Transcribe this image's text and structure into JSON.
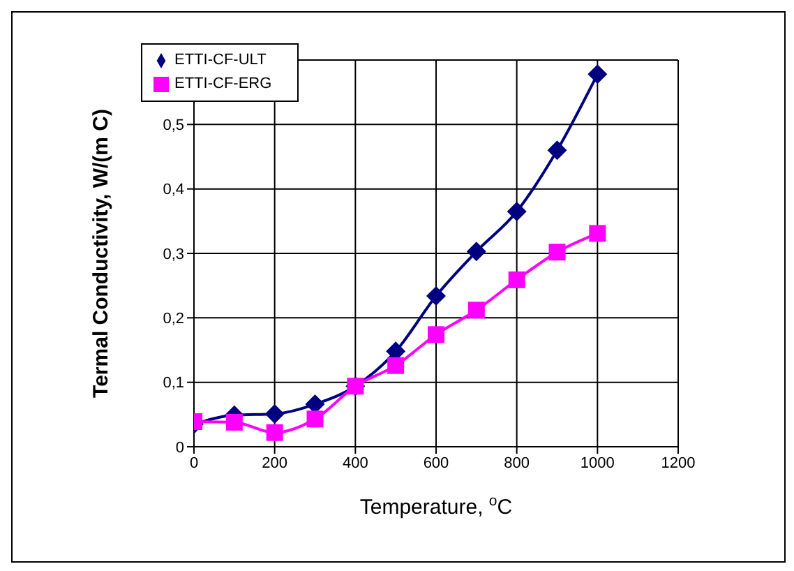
{
  "chart_data": {
    "type": "line",
    "xlabel": "Temperature, $^{o}$C",
    "ylabel": "Termal Conductivity, W/(m C)",
    "x": [
      0,
      100,
      200,
      300,
      400,
      500,
      600,
      700,
      800,
      900,
      1000
    ],
    "series": [
      {
        "name": "ETTI-CF-ULT",
        "color": "#000080",
        "marker": "diamond",
        "values": [
          0.035,
          0.049,
          0.051,
          0.066,
          0.094,
          0.148,
          0.234,
          0.303,
          0.365,
          0.46,
          0.578
        ]
      },
      {
        "name": "ETTI-CF-ERG",
        "color": "#ff00ff",
        "marker": "square",
        "values": [
          0.039,
          0.038,
          0.022,
          0.043,
          0.094,
          0.126,
          0.174,
          0.212,
          0.259,
          0.302,
          0.331
        ]
      }
    ],
    "xlim": [
      0,
      1200
    ],
    "xticks": [
      0,
      200,
      400,
      600,
      800,
      1000,
      1200
    ],
    "ylim": [
      0,
      0.6
    ],
    "yticks": [
      0,
      {
        "value": 0.1,
        "label": "0,1"
      },
      {
        "value": 0.2,
        "label": "0,2"
      },
      {
        "value": 0.3,
        "label": "0,3"
      },
      {
        "value": 0.4,
        "label": "0,4"
      },
      {
        "value": 0.5,
        "label": "0,5"
      },
      {
        "value": 0.6,
        "label": null
      }
    ],
    "grid": true,
    "legend": "top left",
    "line_style": "solid"
  }
}
